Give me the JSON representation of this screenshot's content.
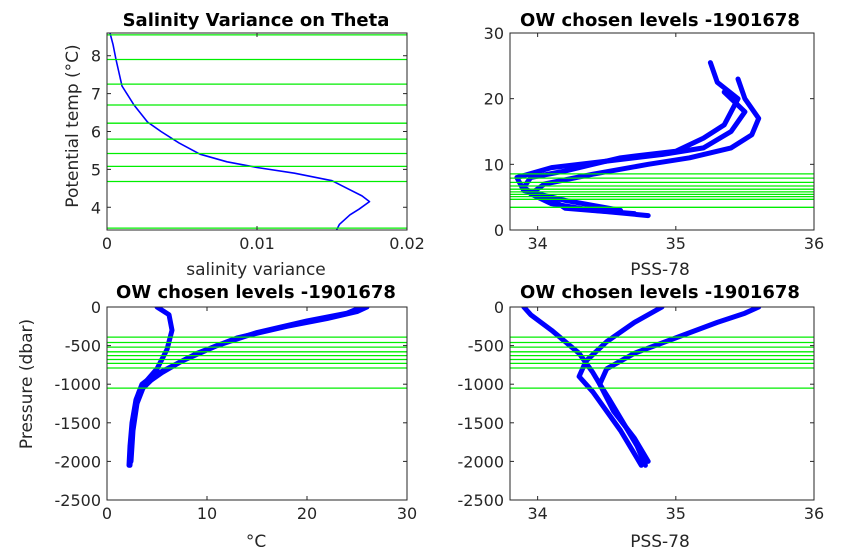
{
  "colors": {
    "data": "#0000ff",
    "levels": "#00ee00",
    "axis": "#262626"
  },
  "chart_data": [
    {
      "type": "line",
      "title": "Salinity Variance on Theta",
      "xlabel": "salinity variance",
      "ylabel": "Potential temp (°C)",
      "xlim": [
        0,
        0.02
      ],
      "ylim": [
        3.4,
        8.6
      ],
      "xticks": [
        0,
        0.01,
        0.02
      ],
      "xtick_labels": [
        "0",
        "0.01",
        "0.02"
      ],
      "yticks": [
        4,
        5,
        6,
        7,
        8
      ],
      "ytick_labels": [
        "4",
        "5",
        "6",
        "7",
        "8"
      ],
      "grid": false,
      "series": [
        {
          "x": [
            0.0153,
            0.0155,
            0.0162,
            0.0168,
            0.0175,
            0.017,
            0.016,
            0.015,
            0.0125,
            0.01,
            0.008,
            0.0062,
            0.0048,
            0.0036,
            0.0027,
            0.0018,
            0.001,
            0.0006,
            0.0004,
            0.0002
          ],
          "y": [
            3.4,
            3.55,
            3.8,
            3.95,
            4.15,
            4.3,
            4.5,
            4.7,
            4.9,
            5.05,
            5.2,
            5.4,
            5.7,
            6.0,
            6.25,
            6.7,
            7.2,
            7.9,
            8.3,
            8.6
          ]
        }
      ],
      "hlines": [
        3.45,
        4.68,
        5.08,
        5.42,
        5.8,
        6.22,
        6.7,
        7.25,
        7.9,
        8.55
      ]
    },
    {
      "type": "line",
      "title": "OW chosen levels -1901678",
      "xlabel": "PSS-78",
      "ylabel": "",
      "xlim": [
        33.8,
        36
      ],
      "ylim": [
        0,
        30
      ],
      "xticks": [
        34,
        35,
        36
      ],
      "xtick_labels": [
        "34",
        "35",
        "36"
      ],
      "yticks": [
        0,
        10,
        20,
        30
      ],
      "ytick_labels": [
        "0",
        "10",
        "20",
        "30"
      ],
      "grid": false,
      "series": [
        {
          "x": [
            34.8,
            34.5,
            34.2,
            34.15,
            34.0,
            33.9,
            33.95,
            34.2,
            34.4,
            34.6,
            35.0,
            35.2,
            35.35,
            35.4,
            35.45,
            35.3,
            35.25
          ],
          "y": [
            2.2,
            2.8,
            3.3,
            4.0,
            5.0,
            6.5,
            8.0,
            9.0,
            10.0,
            11.0,
            12.0,
            14.0,
            16.0,
            18.0,
            20.0,
            22.5,
            25.5
          ]
        },
        {
          "x": [
            34.7,
            34.4,
            34.1,
            33.95,
            34.05,
            34.4,
            34.8,
            35.1,
            35.4,
            35.55,
            35.6,
            35.5,
            35.45
          ],
          "y": [
            2.5,
            3.0,
            4.0,
            5.5,
            7.0,
            8.5,
            10.0,
            11.0,
            12.5,
            14.5,
            17.0,
            20.0,
            23.0
          ]
        },
        {
          "x": [
            34.6,
            34.2,
            33.9,
            33.85,
            34.1,
            34.5,
            34.9,
            35.2,
            35.4,
            35.5,
            35.35
          ],
          "y": [
            3.0,
            4.5,
            6.0,
            8.0,
            9.5,
            10.5,
            11.5,
            12.5,
            15.0,
            18.0,
            21.0
          ]
        }
      ],
      "hlines": [
        3.45,
        4.68,
        5.08,
        5.42,
        5.8,
        6.22,
        6.7,
        7.25,
        7.9,
        8.55
      ]
    },
    {
      "type": "line",
      "title": "OW chosen levels -1901678",
      "xlabel": "°C",
      "ylabel": "Pressure (dbar)",
      "xlim": [
        0,
        30
      ],
      "ylim": [
        -2500,
        0
      ],
      "xticks": [
        0,
        10,
        20,
        30
      ],
      "xtick_labels": [
        "0",
        "10",
        "20",
        "30"
      ],
      "yticks": [
        -2500,
        -2000,
        -1500,
        -1000,
        -500,
        0
      ],
      "ytick_labels": [
        "-2500",
        "-2000",
        "-1500",
        "-1000",
        "-500",
        "0"
      ],
      "grid": false,
      "series": [
        {
          "x": [
            2.2,
            2.3,
            2.5,
            2.9,
            3.5,
            4.5,
            6.0,
            9.0,
            13.0,
            18.0,
            22.0,
            25.0,
            26.0
          ],
          "y": [
            -2050,
            -1800,
            -1500,
            -1200,
            -1000,
            -900,
            -800,
            -600,
            -400,
            -250,
            -150,
            -60,
            0
          ]
        },
        {
          "x": [
            2.4,
            2.6,
            3.0,
            3.6,
            4.4,
            5.5,
            7.5,
            11.0,
            15.0,
            20.0,
            24.0,
            25.5
          ],
          "y": [
            -2000,
            -1600,
            -1250,
            -1050,
            -950,
            -850,
            -700,
            -500,
            -330,
            -180,
            -80,
            0
          ]
        },
        {
          "x": [
            2.3,
            2.6,
            3.2,
            4.0,
            5.0,
            6.0,
            6.5,
            6.2,
            5.0
          ],
          "y": [
            -2050,
            -1500,
            -1100,
            -950,
            -800,
            -550,
            -300,
            -100,
            0
          ]
        }
      ],
      "hlines": [
        -390,
        -460,
        -520,
        -580,
        -630,
        -680,
        -730,
        -790,
        -1050
      ]
    },
    {
      "type": "line",
      "title": "OW chosen levels -1901678",
      "xlabel": "PSS-78",
      "ylabel": "",
      "xlim": [
        33.8,
        36
      ],
      "ylim": [
        -2500,
        0
      ],
      "xticks": [
        34,
        35,
        36
      ],
      "xtick_labels": [
        "34",
        "35",
        "36"
      ],
      "yticks": [
        -2500,
        -2000,
        -1500,
        -1000,
        -500,
        0
      ],
      "ytick_labels": [
        "-2500",
        "-2000",
        "-1500",
        "-1000",
        "-500",
        "0"
      ],
      "grid": false,
      "series": [
        {
          "x": [
            34.78,
            34.72,
            34.62,
            34.52,
            34.45,
            34.4,
            34.3,
            34.1,
            33.95,
            33.9
          ],
          "y": [
            -2050,
            -1800,
            -1500,
            -1200,
            -1000,
            -850,
            -600,
            -300,
            -100,
            0
          ]
        },
        {
          "x": [
            34.8,
            34.7,
            34.55,
            34.45,
            34.5,
            34.7,
            35.0,
            35.3,
            35.5,
            35.6
          ],
          "y": [
            -2000,
            -1700,
            -1350,
            -1000,
            -800,
            -600,
            -400,
            -200,
            -80,
            0
          ]
        },
        {
          "x": [
            34.75,
            34.6,
            34.4,
            34.3,
            34.35,
            34.5,
            34.7,
            34.9
          ],
          "y": [
            -2050,
            -1600,
            -1100,
            -900,
            -700,
            -450,
            -200,
            0
          ]
        }
      ],
      "hlines": [
        -390,
        -460,
        -520,
        -580,
        -630,
        -680,
        -730,
        -790,
        -1050
      ]
    }
  ]
}
